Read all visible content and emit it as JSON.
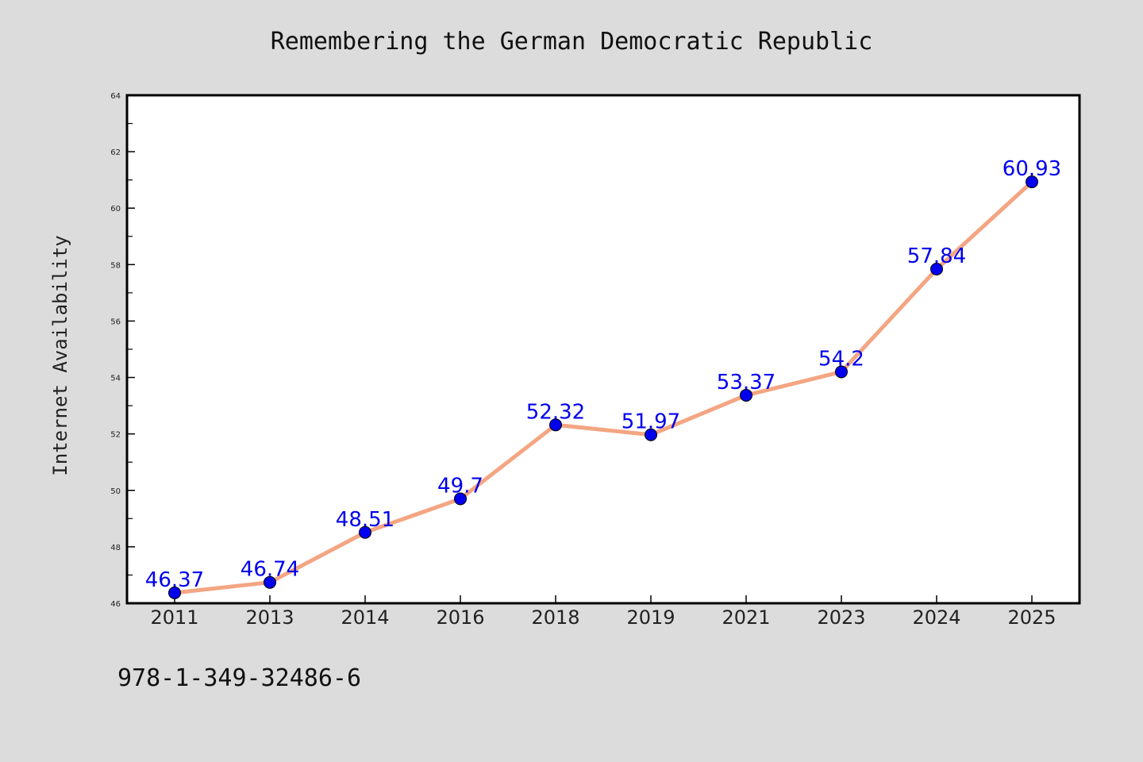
{
  "page": {
    "footer": "978-1-349-32486-6"
  },
  "chart_data": {
    "type": "line",
    "title": "Remembering the German Democratic Republic",
    "xlabel": "",
    "ylabel": "Internet Availability",
    "categories": [
      "2011",
      "2013",
      "2014",
      "2016",
      "2018",
      "2019",
      "2021",
      "2023",
      "2024",
      "2025"
    ],
    "series": [
      {
        "values": [
          46.37,
          46.74,
          48.51,
          49.7,
          52.32,
          51.97,
          53.37,
          54.2,
          57.84,
          60.93
        ],
        "line_color": "#f4a582",
        "marker_color": "#0000ee",
        "label_color": "#0000ee"
      }
    ],
    "ylim": [
      46,
      64
    ],
    "yticks": [
      46,
      48,
      50,
      52,
      54,
      56,
      58,
      60,
      62,
      64
    ],
    "data_labels": [
      "46.37",
      "46.74",
      "48.51",
      "49.7",
      "52.32",
      "51.97",
      "53.37",
      "54.2",
      "57.84",
      "60.93"
    ],
    "grid": false,
    "legend": "none",
    "colors": {
      "background": "#dcdcdc",
      "plot_background": "#ffffff",
      "axis": "#000000"
    }
  }
}
